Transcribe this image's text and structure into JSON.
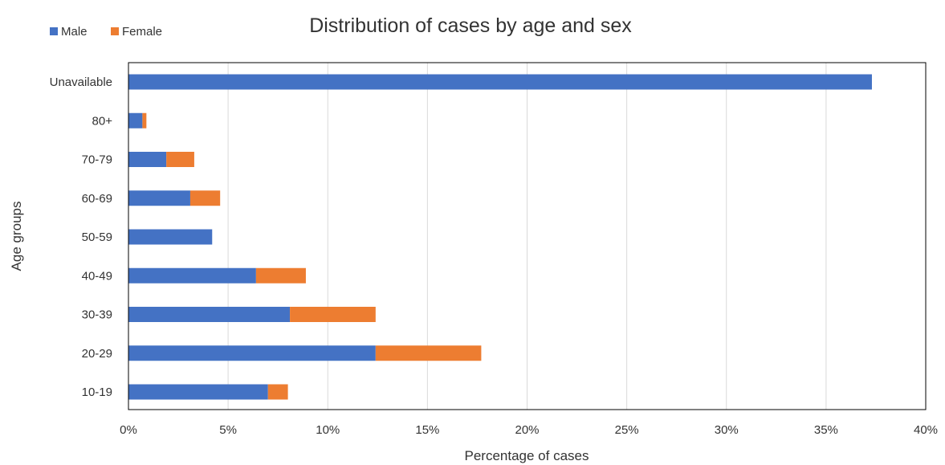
{
  "chart_data": {
    "type": "bar",
    "orientation": "horizontal",
    "stacked": true,
    "title": "Distribution of cases by age and sex",
    "xlabel": "Percentage of cases",
    "ylabel": "Age groups",
    "xlim": [
      0,
      40
    ],
    "x_ticks": [
      "0%",
      "5%",
      "10%",
      "15%",
      "20%",
      "25%",
      "30%",
      "35%",
      "40%"
    ],
    "categories": [
      "Unavailable",
      "80+",
      "70-79",
      "60-69",
      "50-59",
      "40-49",
      "30-39",
      "20-29",
      "10-19"
    ],
    "series": [
      {
        "name": "Male",
        "color": "#4472C4",
        "values": [
          37.3,
          0.7,
          1.9,
          3.1,
          4.2,
          6.4,
          8.1,
          12.4,
          7.0
        ]
      },
      {
        "name": "Female",
        "color": "#ED7D31",
        "values": [
          0,
          0.2,
          1.4,
          1.5,
          0,
          2.5,
          4.3,
          5.3,
          1.0
        ]
      }
    ],
    "grid": "vertical",
    "legend": "top-left"
  }
}
